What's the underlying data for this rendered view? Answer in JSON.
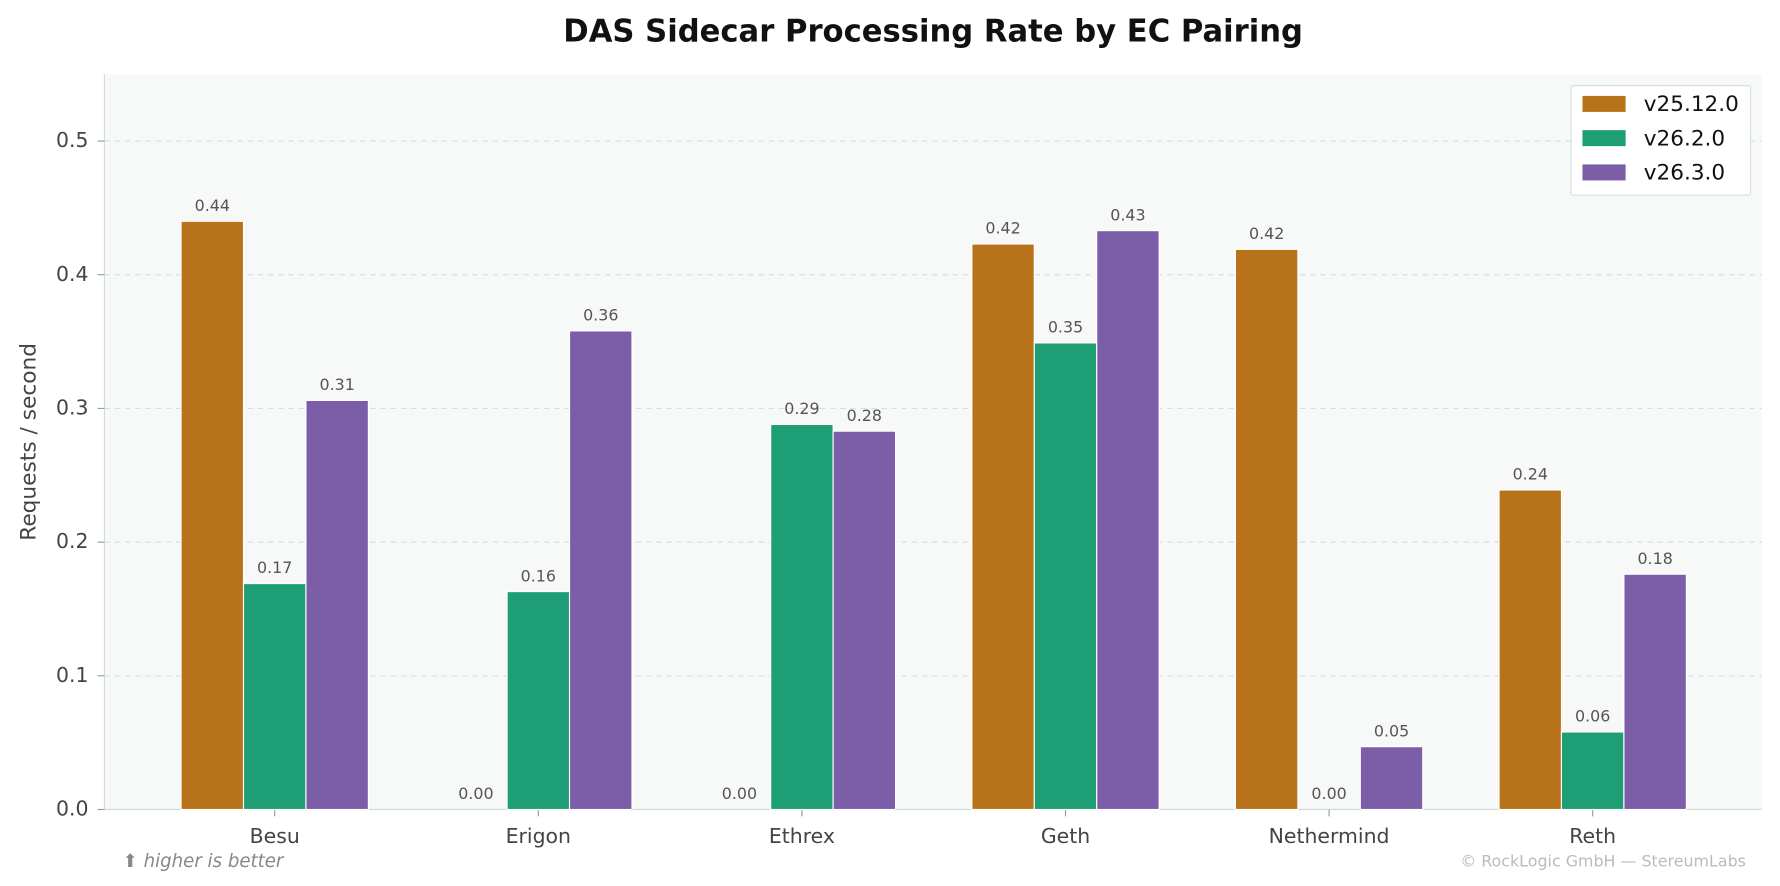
{
  "chart_data": {
    "type": "bar",
    "title": "DAS Sidecar Processing Rate by EC Pairing",
    "y_label": "Requests / second",
    "categories": [
      "Besu",
      "Erigon",
      "Ethrex",
      "Geth",
      "Nethermind",
      "Reth"
    ],
    "series": [
      {
        "name": "v25.12.0",
        "color": "#b8731a",
        "values": [
          0.44,
          0,
          0,
          0.423,
          0.419,
          0.239
        ],
        "value_labels": [
          "0.44",
          "0.00",
          "0.00",
          "0.42",
          "0.42",
          "0.24"
        ]
      },
      {
        "name": "v26.2.0",
        "color": "#1d9e74",
        "values": [
          0.169,
          0.163,
          0.288,
          0.349,
          0,
          0.058
        ],
        "value_labels": [
          "0.17",
          "0.16",
          "0.29",
          "0.35",
          "0.00",
          "0.06"
        ]
      },
      {
        "name": "v26.3.0",
        "color": "#7b5ea7",
        "values": [
          0.306,
          0.358,
          0.283,
          0.433,
          0.047,
          0.176
        ],
        "value_labels": [
          "0.31",
          "0.36",
          "0.28",
          "0.43",
          "0.05",
          "0.18"
        ]
      }
    ],
    "ylim": [
      0,
      0.55
    ],
    "yticks": [
      {
        "value": 0,
        "label": "0.0"
      },
      0.1,
      0.2,
      0.3,
      0.4,
      0.5
    ],
    "grid": true,
    "legend": "upper right",
    "annotations": [
      "⬆ higher is better",
      "© RockLogic GmbH — StereumLabs"
    ]
  }
}
